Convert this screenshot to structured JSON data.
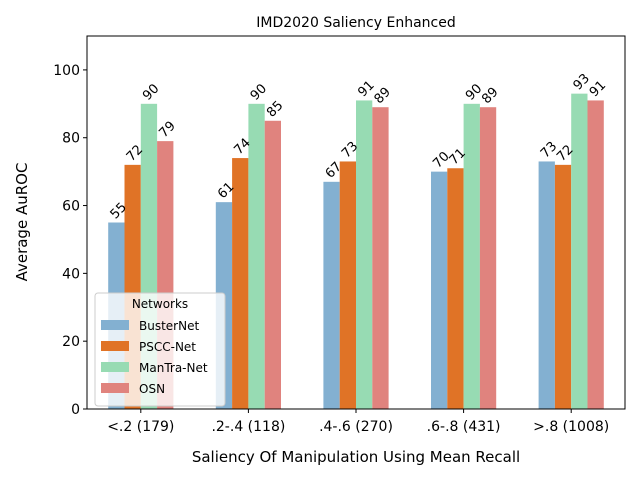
{
  "chart_data": {
    "type": "bar",
    "title": "IMD2020 Saliency Enhanced",
    "xlabel": "Saliency Of Manipulation Using Mean Recall",
    "ylabel": "Average AuROC",
    "ylim": [
      0,
      110
    ],
    "yticks": [
      0,
      20,
      40,
      60,
      80,
      100
    ],
    "grid": false,
    "categories": [
      "<.2 (179)",
      ".2-.4 (118)",
      ".4-.6 (270)",
      ".6-.8 (431)",
      ">.8 (1008)"
    ],
    "series": [
      {
        "name": "BusterNet",
        "color": "#83b0d1",
        "values": [
          55,
          61,
          67,
          70,
          73
        ],
        "labels": [
          "55",
          "61",
          "67",
          "70",
          "73"
        ]
      },
      {
        "name": "PSCC-Net",
        "color": "#e07326",
        "values": [
          72,
          74,
          73,
          71,
          72
        ],
        "labels": [
          "72",
          "74",
          "73",
          "71",
          "72"
        ]
      },
      {
        "name": "ManTra-Net",
        "color": "#97dbb3",
        "values": [
          90,
          90,
          91,
          90,
          93
        ],
        "labels": [
          "90",
          "90",
          "91",
          "90",
          "93"
        ]
      },
      {
        "name": "OSN",
        "color": "#e0837e",
        "values": [
          79,
          85,
          89,
          89,
          91
        ],
        "labels": [
          "79",
          "85",
          "89",
          "89",
          "91"
        ]
      }
    ],
    "legend": {
      "title": "Networks",
      "position": "lower-left"
    }
  }
}
